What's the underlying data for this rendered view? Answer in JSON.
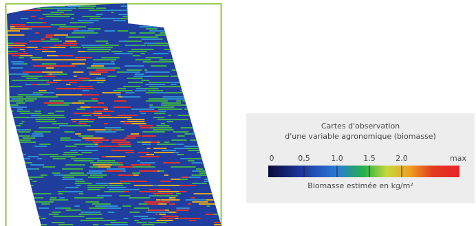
{
  "legend": {
    "title_lines": [
      "Cartes d'observation",
      "d'une variable agronomique (biomasse)"
    ],
    "scale_labels": [
      "0",
      "0,5",
      "1.0",
      "1.5",
      "2.0",
      "max"
    ],
    "caption": "Biomasse estimée en kg/m²"
  }
}
